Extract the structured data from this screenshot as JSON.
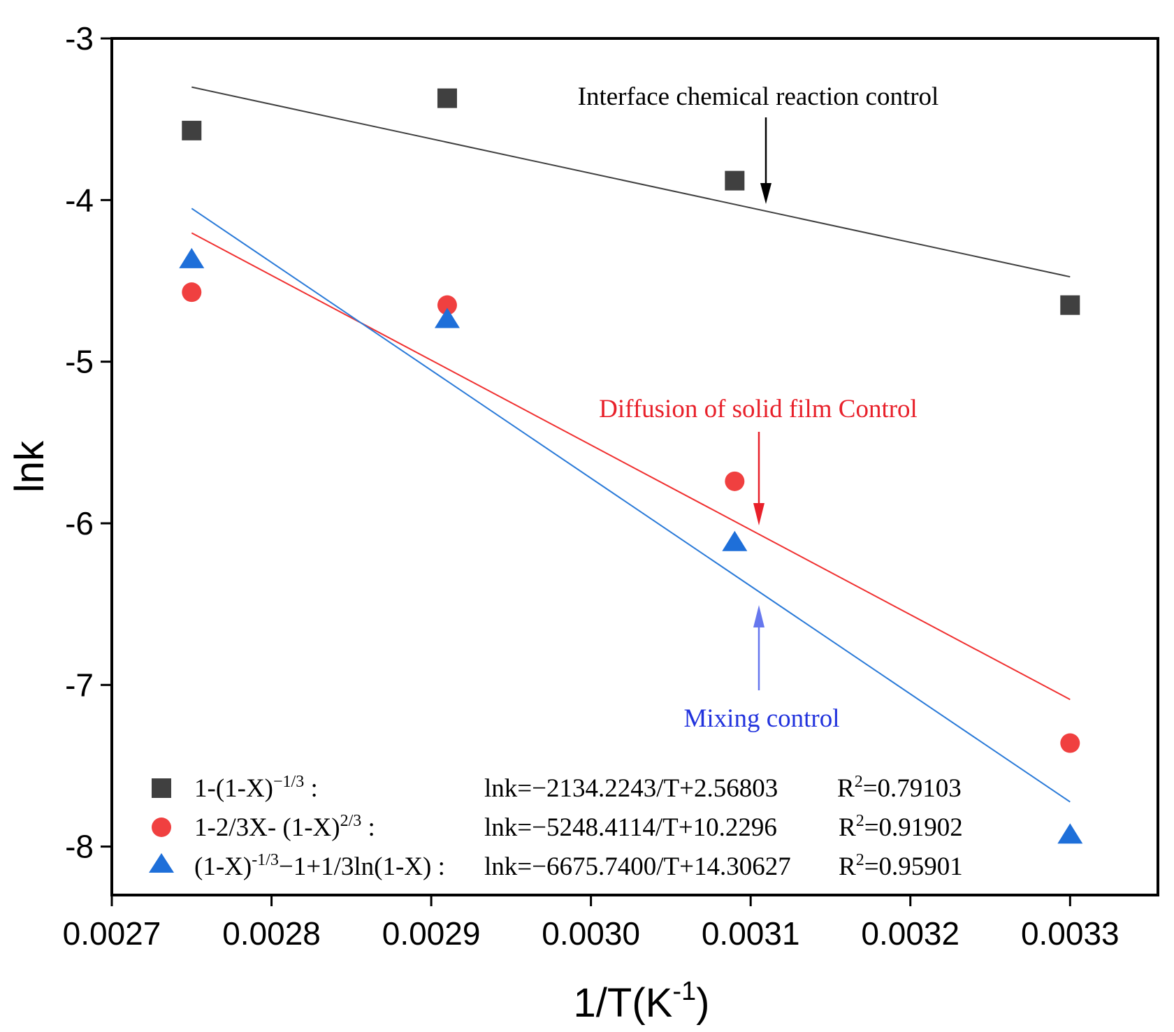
{
  "chart_data": {
    "type": "scatter",
    "xlabel": "1/T(K",
    "xlabel_sup": "-1",
    "xlabel_close": ")",
    "ylabel": "lnk",
    "xlim": [
      0.0027,
      0.003355
    ],
    "ylim": [
      -8.3,
      -3.0
    ],
    "x_ticks": [
      0.0027,
      0.0028,
      0.0029,
      0.003,
      0.0031,
      0.0032,
      0.0033
    ],
    "x_tick_labels": [
      "0.0027",
      "0.0028",
      "0.0029",
      "0.0030",
      "0.0031",
      "0.0032",
      "0.0033"
    ],
    "y_ticks": [
      -3,
      -4,
      -5,
      -6,
      -7,
      -8
    ],
    "y_tick_labels": [
      "-3",
      "-4",
      "-5",
      "-6",
      "-7",
      "-8"
    ],
    "x": [
      0.00275,
      0.00291,
      0.00309,
      0.0033
    ],
    "series": [
      {
        "name": "1-(1-X)^-1/3",
        "marker": "square",
        "color": "#404040",
        "values": [
          -3.57,
          -3.37,
          -3.88,
          -4.65
        ],
        "fit": {
          "slope": -2134.2243,
          "intercept": 2.56803,
          "x_range": [
            0.00275,
            0.0033
          ]
        }
      },
      {
        "name": "1-2/3X-(1-X)^2/3",
        "marker": "circle",
        "color": "#f04040",
        "line_color": "#f03030",
        "values": [
          -4.57,
          -4.65,
          -5.74,
          -7.36
        ],
        "fit": {
          "slope": -5248.4114,
          "intercept": 10.2296,
          "x_range": [
            0.00275,
            0.0033
          ]
        }
      },
      {
        "name": "(1-X)^-1/3-1+1/3ln(1-X)",
        "marker": "triangle",
        "color": "#1e6fd9",
        "line_color": "#2a7ad8",
        "values": [
          -4.37,
          -4.74,
          -6.12,
          -7.93
        ],
        "fit": {
          "slope": -6675.74,
          "intercept": 14.30627,
          "x_range": [
            0.00275,
            0.0033
          ]
        }
      }
    ],
    "annotations": [
      {
        "text": "Interface chemical reaction control",
        "color": "#000000"
      },
      {
        "text": "Diffusion of solid film Control",
        "color": "#e8202a"
      },
      {
        "text": "Mixing control",
        "color": "#2233dd"
      }
    ],
    "legend": {
      "placement": "bottom-left",
      "entries": [
        {
          "label_base": "1-(1-X)",
          "label_sup": "−1/3",
          "label_tail": " :",
          "equation": "lnk=−2134.2243/T+2.56803",
          "r2_prefix": "R",
          "r2_sup": "2",
          "r2_value": "=0.79103"
        },
        {
          "label_base": "1-2/3X- (1-X)",
          "label_sup": "2/3",
          "label_tail": " :",
          "equation": "lnk=−5248.4114/T+10.2296",
          "r2_prefix": "R",
          "r2_sup": "2",
          "r2_value": "=0.91902"
        },
        {
          "label_base": "(1-X)",
          "label_sup": "-1/3",
          "label_tail": "−1+1/3ln(1-X) :",
          "equation": "lnk=−6675.7400/T+14.30627",
          "r2_prefix": "R",
          "r2_sup": "2",
          "r2_value": "=0.95901"
        }
      ]
    }
  }
}
